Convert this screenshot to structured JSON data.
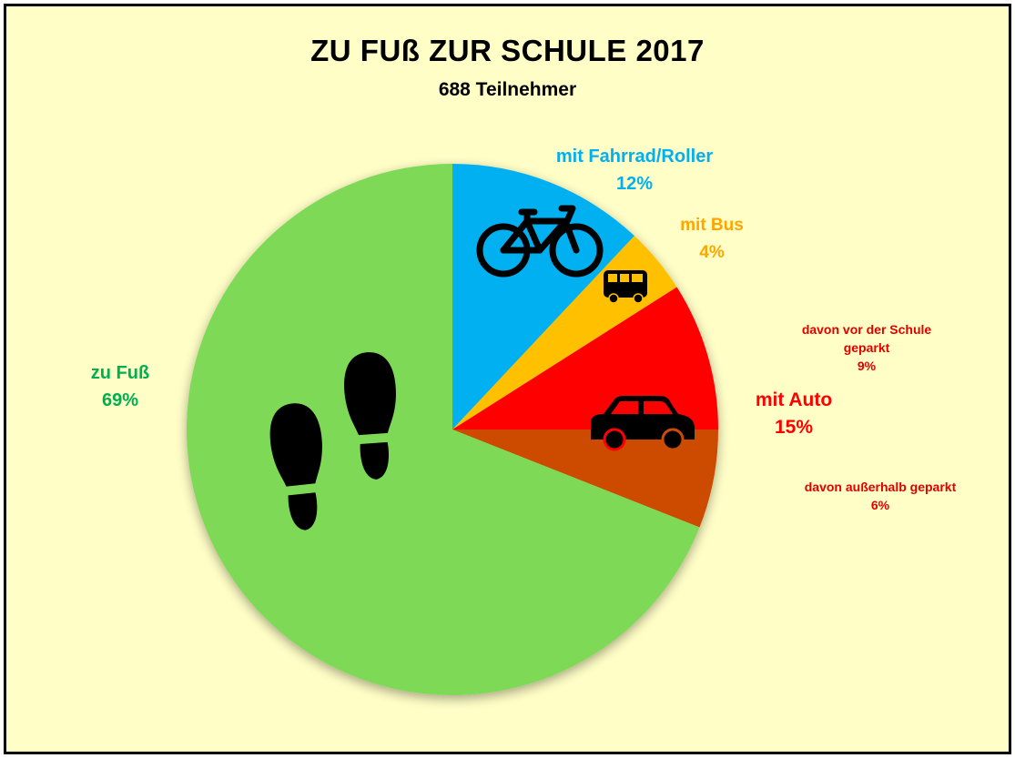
{
  "chart_data": {
    "type": "pie",
    "title": "ZU FUß ZUR SCHULE 2017",
    "subtitle": "688 Teilnehmer",
    "slices": [
      {
        "label": "mit Fahrrad/Roller",
        "percent_label": "12%",
        "value": 12,
        "color": "#00b0f0"
      },
      {
        "label": "mit Bus",
        "percent_label": "4%",
        "value": 4,
        "color": "#ffc000"
      },
      {
        "label": "davon vor der Schule geparkt",
        "percent_label": "9%",
        "value": 9,
        "color": "#ff0000"
      },
      {
        "label": "davon außerhalb geparkt",
        "percent_label": "6%",
        "value": 6,
        "color": "#cc4c02"
      },
      {
        "label": "zu Fuß",
        "percent_label": "69%",
        "value": 69,
        "color": "#7ed957"
      }
    ],
    "group_labels": [
      {
        "label": "mit Auto",
        "percent_label": "15%",
        "color": "#ff0000"
      }
    ]
  },
  "labels": {
    "fuss_name": "zu Fuß",
    "fuss_pct": "69%",
    "rad_name": "mit Fahrrad/Roller",
    "rad_pct": "12%",
    "bus_name": "mit Bus",
    "bus_pct": "4%",
    "auto_name": "mit Auto",
    "auto_pct": "15%",
    "vor_line1": "davon vor der Schule",
    "vor_line2": "geparkt",
    "vor_pct": "9%",
    "aus_line1": "davon außerhalb geparkt",
    "aus_pct": "6%"
  },
  "colors": {
    "fuss_text": "#00b050",
    "rad_text": "#00b0f0",
    "bus_text": "#ffa500",
    "auto_text": "#ff0000",
    "sub_text": "#e00000",
    "background": "#fffec6"
  },
  "icons": [
    "footprints-icon",
    "bicycle-icon",
    "bus-icon",
    "car-icon"
  ]
}
